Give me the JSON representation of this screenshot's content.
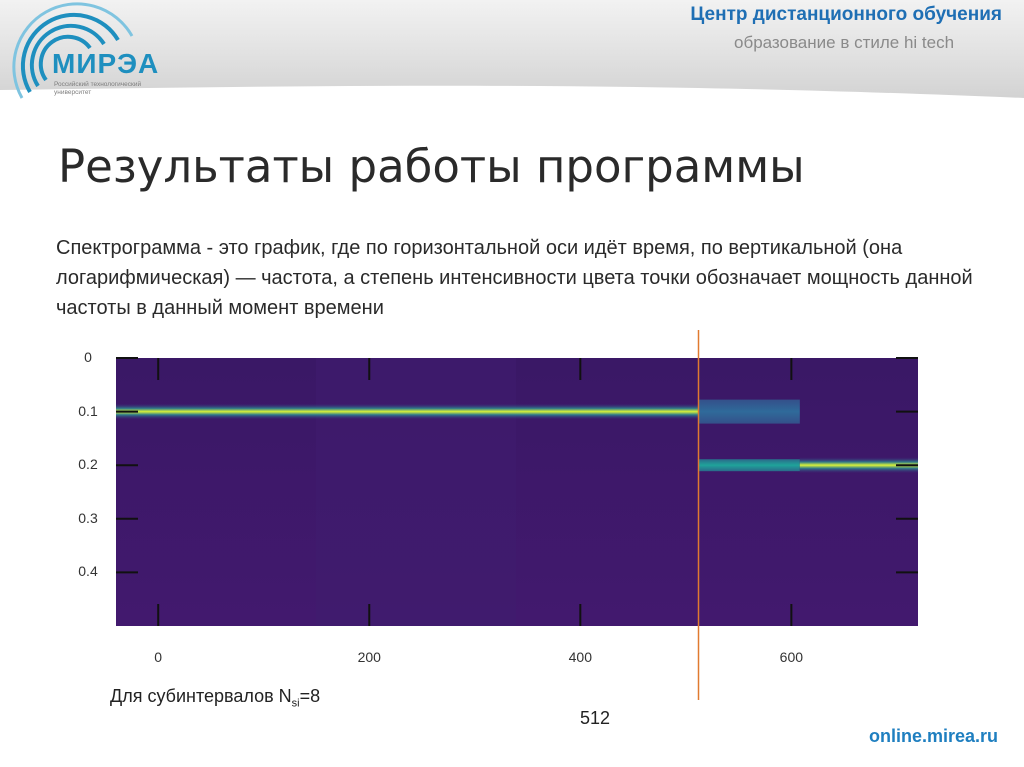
{
  "header": {
    "center_name": "Центр дистанционного обучения",
    "tagline": "образование в стиле hi tech",
    "logo_text": "МИРЭА",
    "logo_subtitle": "Российский технологический университет"
  },
  "slide": {
    "title": "Результаты работы программы",
    "body": "Спектрограмма  - это график, где по горизонтальной оси идёт время, по вертикальной (она логарифмическая) — частота, а степень интенсивности цвета точки обозначает мощность данной частоты в данный момент времени"
  },
  "chart_data": {
    "type": "heatmap",
    "x_ticks": [
      "0",
      "200",
      "400",
      "600"
    ],
    "y_ticks": [
      "0",
      "0.1",
      "0.2",
      "0.3",
      "0.4"
    ],
    "xlim": [
      -40,
      720
    ],
    "ylim": [
      0,
      0.5
    ],
    "bands": [
      {
        "x_start": -40,
        "x_end": 512,
        "freq": 0.1,
        "intensity": "high"
      },
      {
        "x_start": 512,
        "x_end": 608,
        "freq": 0.1,
        "intensity": "medium"
      },
      {
        "x_start": 512,
        "x_end": 608,
        "freq": 0.2,
        "intensity": "medium"
      },
      {
        "x_start": 608,
        "x_end": 720,
        "freq": 0.2,
        "intensity": "high"
      }
    ],
    "marker_x": 512,
    "colors": {
      "background": "#3d1a6e",
      "low": "#2f6a9a",
      "medium": "#1fa39a",
      "high": "#d8f23a"
    }
  },
  "caption": {
    "prefix": "Для субинтервалов N",
    "subscript": "si",
    "suffix": "=8"
  },
  "marker_label": "512",
  "footer": {
    "url": "online.mirea.ru"
  }
}
